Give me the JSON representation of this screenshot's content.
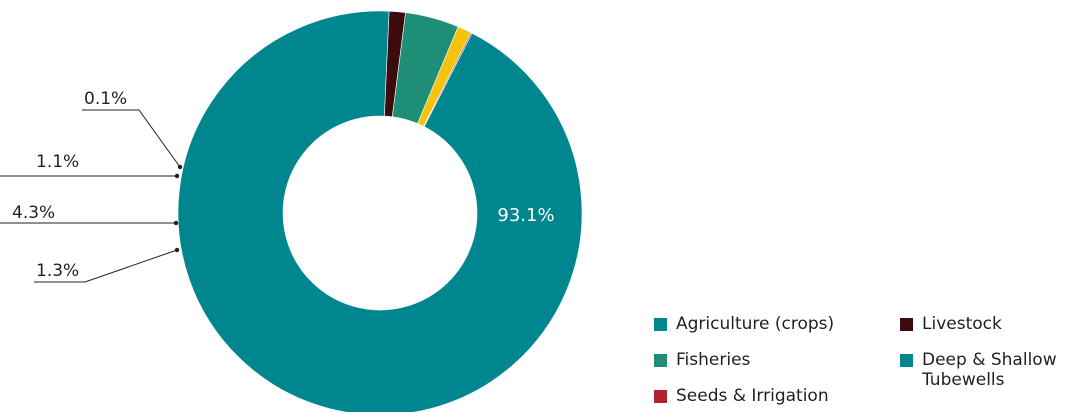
{
  "chart_data": {
    "type": "pie",
    "donut": true,
    "title": "",
    "series": [
      {
        "name": "Agriculture (crops)",
        "value": 93.1,
        "label": "93.1%",
        "color": "#00868f"
      },
      {
        "name": "Livestock",
        "value": 1.3,
        "label": "1.3%",
        "color": "#3d0a0e"
      },
      {
        "name": "Fisheries",
        "value": 4.3,
        "label": "4.3%",
        "color": "#1e8f76"
      },
      {
        "name": "Deep & Shallow Tubewells",
        "value": 1.1,
        "label": "1.1%",
        "color": "#f4c30f"
      },
      {
        "name": "Seeds & Irrigation",
        "value": 0.1,
        "label": "0.1%",
        "color": "#b5222f"
      }
    ],
    "legend": {
      "placement": "bottom-right",
      "items": [
        {
          "label": "Agriculture (crops)",
          "color": "#00868f"
        },
        {
          "label": "Livestock",
          "color": "#3d0a0e"
        },
        {
          "label": "Fisheries",
          "color": "#1e8f76"
        },
        {
          "label": "Deep & Shallow\nTubewells",
          "color": "#00868f"
        },
        {
          "label": "Seeds & Irrigation",
          "color": "#b5222f"
        }
      ]
    }
  }
}
